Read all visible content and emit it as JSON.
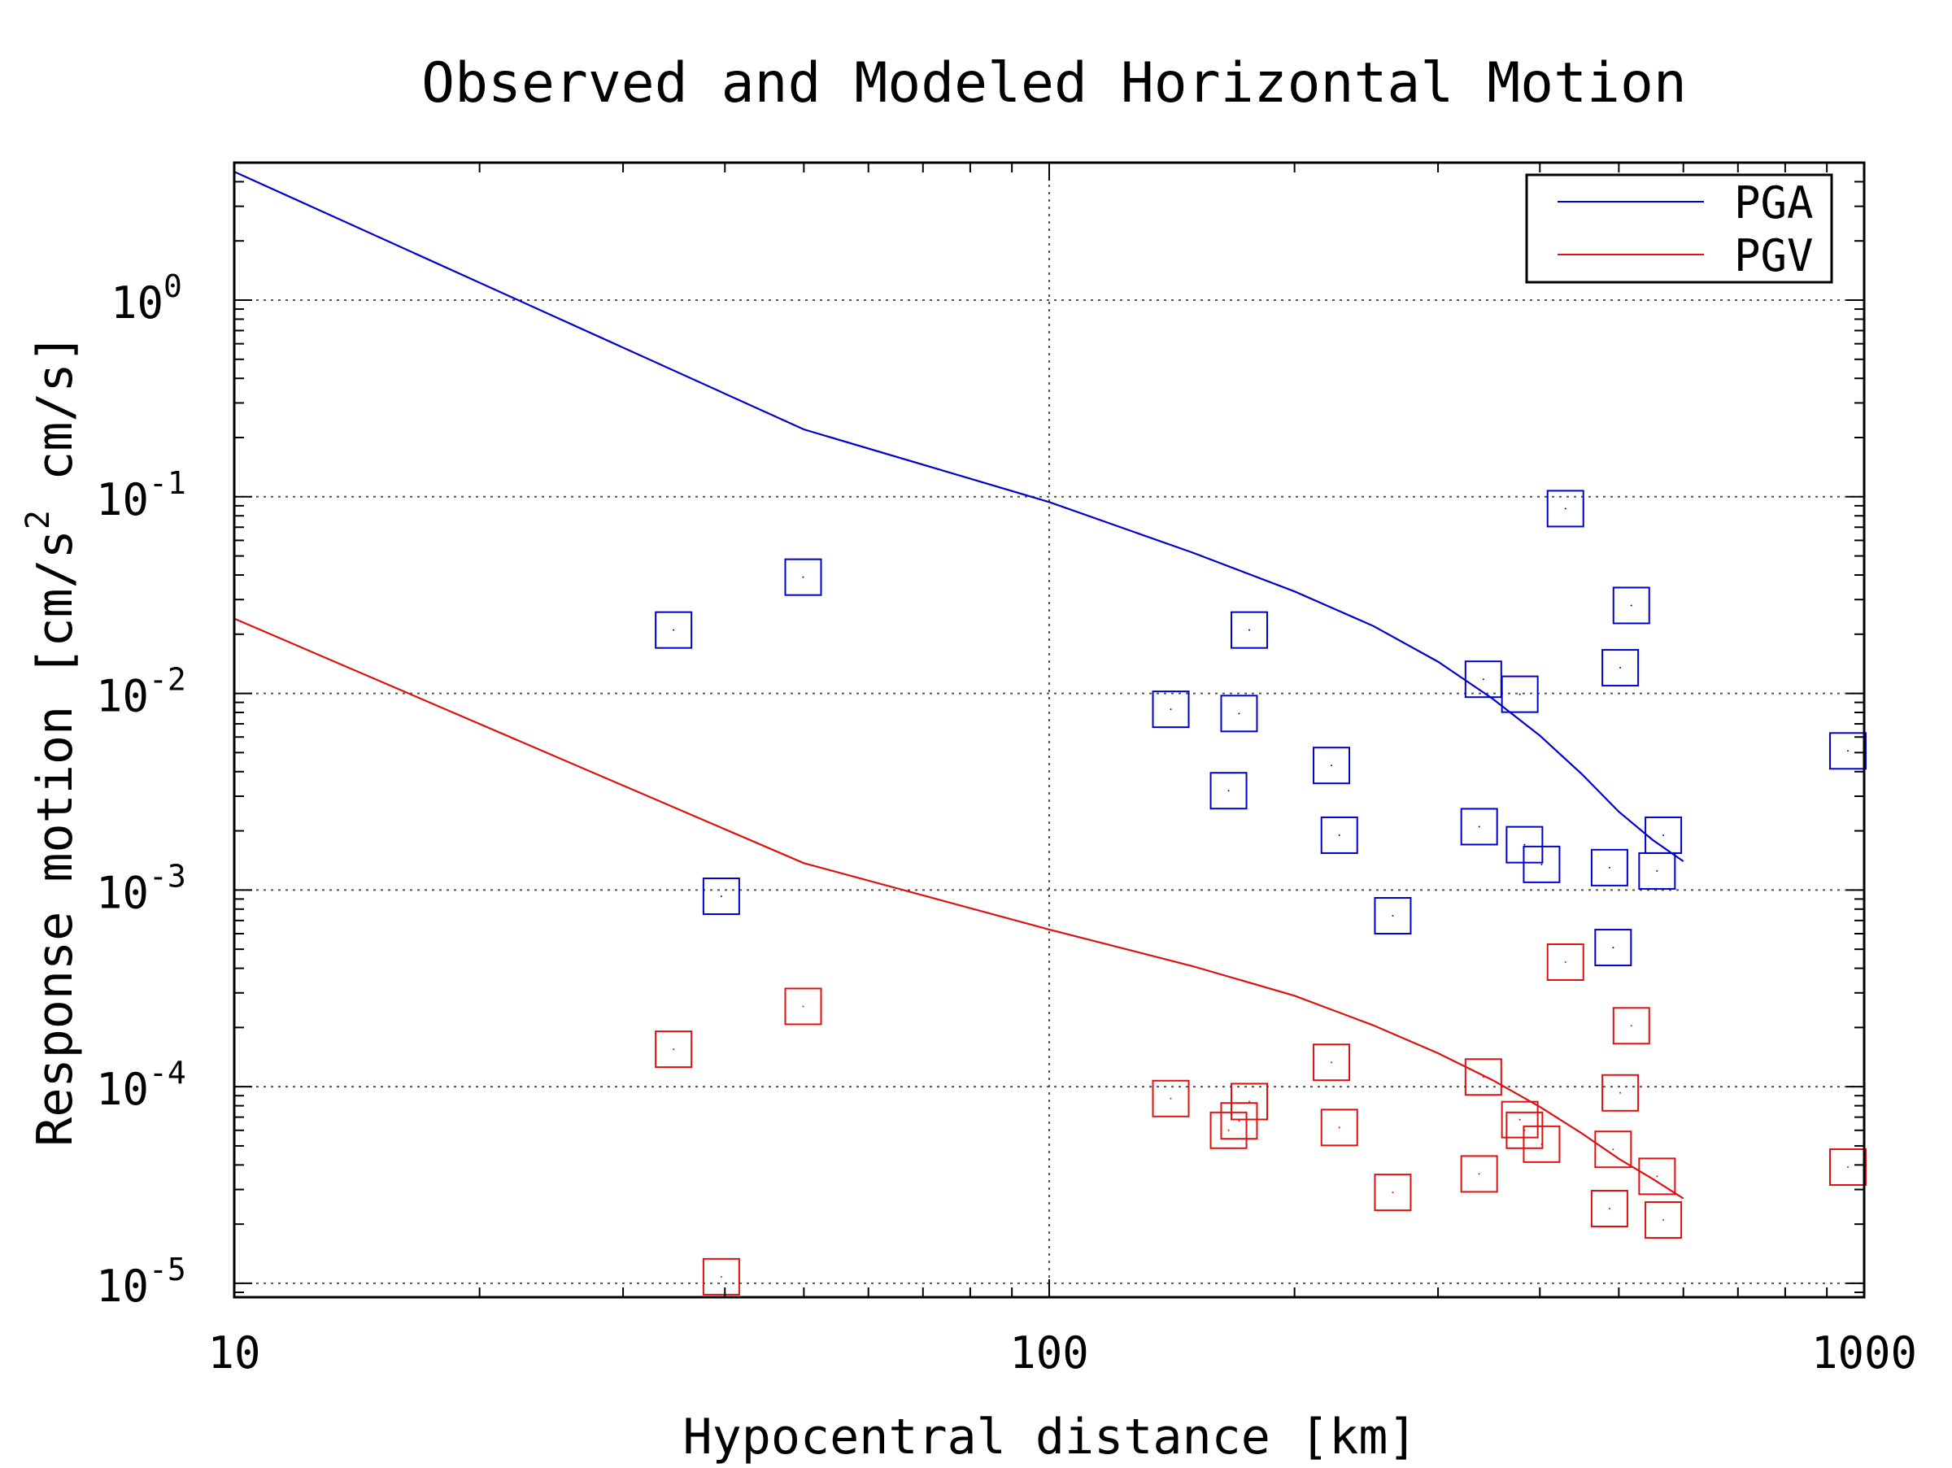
{
  "chart_data": {
    "type": "scatter",
    "title": "Observed and Modeled Horizontal Motion",
    "xlabel": "Hypocentral distance [km]",
    "ylabel": "Response motion  [cm/s² cm/s]",
    "ylabel_parts": {
      "a": "Response motion  [cm/s",
      "sup": "2",
      "b": "  cm/s]"
    },
    "x_scale": "log",
    "y_scale": "log",
    "xlim": [
      10,
      1000
    ],
    "ylim": [
      8.5e-06,
      5.0
    ],
    "x_ticks": [
      {
        "value": 10,
        "label": "10"
      },
      {
        "value": 100,
        "label": "100"
      },
      {
        "value": 1000,
        "label": "1000"
      }
    ],
    "y_ticks": [
      {
        "value": 1,
        "base": "10",
        "exp": "0"
      },
      {
        "value": 0.1,
        "base": "10",
        "exp": "-1"
      },
      {
        "value": 0.01,
        "base": "10",
        "exp": "-2"
      },
      {
        "value": 0.001,
        "base": "10",
        "exp": "-3"
      },
      {
        "value": 0.0001,
        "base": "10",
        "exp": "-4"
      },
      {
        "value": 1e-05,
        "base": "10",
        "exp": "-5"
      }
    ],
    "grid": true,
    "legend_position": "top-right",
    "colors": {
      "PGA": "#0000cc",
      "PGV": "#dd1111",
      "grid": "#555555",
      "axis": "#000000"
    },
    "model_series": [
      {
        "name": "PGA",
        "color": "#0000cc",
        "x": [
          10,
          50,
          100,
          150,
          200,
          250,
          300,
          350,
          400,
          450,
          500,
          550,
          600
        ],
        "y": [
          4.5,
          0.22,
          0.094,
          0.052,
          0.033,
          0.022,
          0.0145,
          0.0094,
          0.0061,
          0.0039,
          0.0025,
          0.0018,
          0.0014
        ]
      },
      {
        "name": "PGV",
        "color": "#dd1111",
        "x": [
          10,
          50,
          100,
          150,
          200,
          250,
          300,
          350,
          400,
          450,
          500,
          550,
          600
        ],
        "y": [
          0.024,
          0.00137,
          0.00063,
          0.00041,
          0.00029,
          0.000205,
          0.000148,
          0.000108,
          7.9e-05,
          5.8e-05,
          4.3e-05,
          3.4e-05,
          2.7e-05
        ]
      }
    ],
    "observed_series": [
      {
        "name": "PGA observed",
        "color": "#0000cc",
        "points": [
          [
            34.6,
            0.021
          ],
          [
            39.6,
            0.00093
          ],
          [
            49.9,
            0.039
          ],
          [
            141,
            0.0083
          ],
          [
            166,
            0.0032
          ],
          [
            171,
            0.0079
          ],
          [
            176,
            0.021
          ],
          [
            222,
            0.0043
          ],
          [
            227,
            0.0019
          ],
          [
            264,
            0.00074
          ],
          [
            337,
            0.0021
          ],
          [
            341,
            0.0118
          ],
          [
            378,
            0.0099
          ],
          [
            383,
            0.0017
          ],
          [
            402,
            0.00135
          ],
          [
            430,
            0.087
          ],
          [
            487,
            0.0013
          ],
          [
            492,
            0.00051
          ],
          [
            502,
            0.0135
          ],
          [
            518,
            0.028
          ],
          [
            557,
            0.00125
          ],
          [
            567,
            0.0019
          ],
          [
            955,
            0.0051
          ]
        ]
      },
      {
        "name": "PGV observed",
        "color": "#dd1111",
        "points": [
          [
            34.6,
            0.000155
          ],
          [
            39.6,
            1.08e-05
          ],
          [
            49.9,
            0.000256
          ],
          [
            141,
            8.7e-05
          ],
          [
            166,
            6e-05
          ],
          [
            171,
            6.7e-05
          ],
          [
            176,
            8.4e-05
          ],
          [
            222,
            0.000133
          ],
          [
            227,
            6.2e-05
          ],
          [
            264,
            2.9e-05
          ],
          [
            337,
            3.6e-05
          ],
          [
            341,
            0.000112
          ],
          [
            378,
            6.8e-05
          ],
          [
            383,
            6e-05
          ],
          [
            402,
            5.1e-05
          ],
          [
            430,
            0.00043
          ],
          [
            487,
            2.4e-05
          ],
          [
            492,
            4.8e-05
          ],
          [
            502,
            9.3e-05
          ],
          [
            518,
            0.000204
          ],
          [
            557,
            3.5e-05
          ],
          [
            567,
            2.1e-05
          ],
          [
            955,
            3.9e-05
          ]
        ]
      }
    ],
    "legend": [
      {
        "label": "PGA",
        "color": "#0000cc"
      },
      {
        "label": "PGV",
        "color": "#dd1111"
      }
    ]
  }
}
